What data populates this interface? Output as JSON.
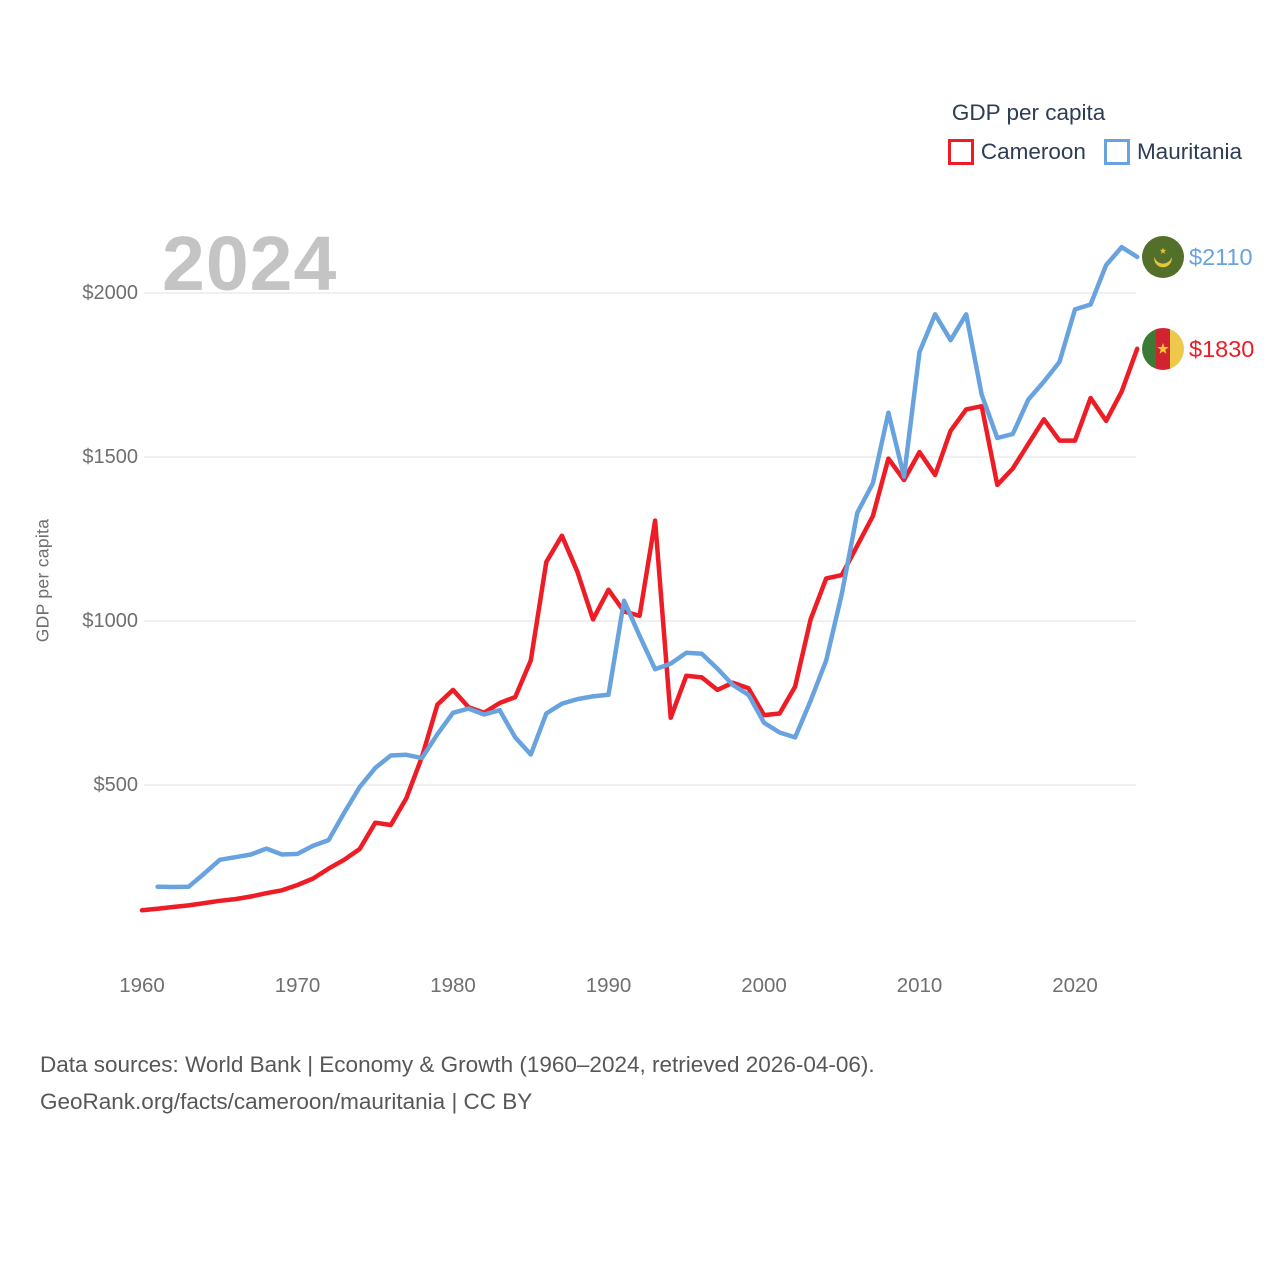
{
  "legend": {
    "title": "GDP per capita",
    "items": [
      {
        "label": "Cameroon",
        "color": "#ee1c25"
      },
      {
        "label": "Mauritania",
        "color": "#68a3df"
      }
    ]
  },
  "watermark": "2024",
  "y_axis": {
    "title": "GDP per capita",
    "ticks": [
      "$2000",
      "$1500",
      "$1000",
      "$500"
    ],
    "tick_values": [
      2000,
      1500,
      1000,
      500
    ]
  },
  "x_axis": {
    "ticks": [
      "1960",
      "1970",
      "1980",
      "1990",
      "2000",
      "2010",
      "2020"
    ],
    "tick_values": [
      1960,
      1970,
      1980,
      1990,
      2000,
      2010,
      2020
    ]
  },
  "end_labels": [
    {
      "country": "Mauritania",
      "value": "$2110",
      "color": "#68a3df",
      "flag_icon": "mauritania-flag"
    },
    {
      "country": "Cameroon",
      "value": "$1830",
      "color": "#ee1c25",
      "flag_icon": "cameroon-flag"
    }
  ],
  "footer": {
    "line1": "Data sources: World Bank | Economy & Growth (1960–2024, retrieved 2026-04-06).",
    "line2": "GeoRank.org/facts/cameroon/mauritania | CC BY"
  },
  "chart_data": {
    "type": "line",
    "title": "GDP per capita",
    "ylabel": "GDP per capita",
    "xlabel": "",
    "x_range": [
      1960,
      2024
    ],
    "ylim": [
      0,
      2200
    ],
    "y_gridlines": [
      2000,
      1500,
      1000,
      500
    ],
    "grid": "horizontal",
    "legend_position": "top-right",
    "x": [
      1960,
      1961,
      1962,
      1963,
      1964,
      1965,
      1966,
      1967,
      1968,
      1969,
      1970,
      1971,
      1972,
      1973,
      1974,
      1975,
      1976,
      1977,
      1978,
      1979,
      1980,
      1981,
      1982,
      1983,
      1984,
      1985,
      1986,
      1987,
      1988,
      1989,
      1990,
      1991,
      1992,
      1993,
      1994,
      1995,
      1996,
      1997,
      1998,
      1999,
      2000,
      2001,
      2002,
      2003,
      2004,
      2005,
      2006,
      2007,
      2008,
      2009,
      2010,
      2011,
      2012,
      2013,
      2014,
      2015,
      2016,
      2017,
      2018,
      2019,
      2020,
      2021,
      2022,
      2023,
      2024
    ],
    "series": [
      {
        "name": "Cameroon",
        "color": "#ee1c25",
        "end_value": 1830,
        "end_label": "$1830",
        "values": [
          118,
          123,
          128,
          133,
          140,
          147,
          152,
          160,
          170,
          179,
          195,
          215,
          245,
          272,
          305,
          385,
          378,
          460,
          585,
          745,
          790,
          737,
          720,
          750,
          768,
          880,
          1180,
          1260,
          1150,
          1005,
          1095,
          1029,
          1016,
          1306,
          705,
          833,
          828,
          790,
          812,
          795,
          713,
          718,
          800,
          1005,
          1130,
          1140,
          1230,
          1320,
          1495,
          1430,
          1515,
          1445,
          1580,
          1645,
          1655,
          1415,
          1465,
          1540,
          1615,
          1550,
          1550,
          1680,
          1610,
          1700,
          1830
        ]
      },
      {
        "name": "Mauritania",
        "color": "#68a3df",
        "end_value": 2110,
        "end_label": "$2110",
        "values": [
          null,
          190,
          189,
          190,
          230,
          272,
          280,
          288,
          306,
          288,
          290,
          315,
          332,
          415,
          494,
          552,
          590,
          592,
          582,
          655,
          720,
          733,
          715,
          728,
          645,
          593,
          718,
          748,
          762,
          770,
          775,
          1062,
          955,
          853,
          870,
          903,
          900,
          855,
          805,
          775,
          690,
          660,
          645,
          757,
          880,
          1083,
          1330,
          1420,
          1635,
          1440,
          1820,
          1935,
          1856,
          1935,
          1690,
          1558,
          1570,
          1675,
          1730,
          1790,
          1950,
          1965,
          2085,
          2140,
          2110
        ]
      }
    ]
  }
}
